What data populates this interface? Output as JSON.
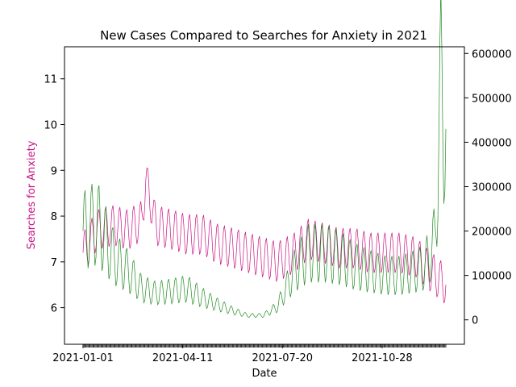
{
  "chart_data": {
    "type": "line",
    "title": "New Cases Compared to Searches for Anxiety in 2021",
    "xlabel": "Date",
    "ylabel_left": "Searches for Anxiety",
    "ylabel_right": "",
    "x_ticks": [
      "2021-01-01",
      "2021-04-11",
      "2021-07-20",
      "2021-10-28"
    ],
    "y_left_ticks": [
      6,
      7,
      8,
      9,
      10,
      11
    ],
    "y_right_ticks": [
      "0",
      "100000",
      "200000",
      "300000",
      "400000",
      "500000",
      "600000"
    ],
    "x_range": [
      "2021-01-01",
      "2021-12-31"
    ],
    "y_left_range": [
      5.2,
      11.7
    ],
    "y_right_range": [
      -55000,
      615000
    ],
    "grid": false,
    "colors": {
      "searches": "#c71585",
      "cases": "#228b22",
      "left_label": "#c71585"
    },
    "series": [
      {
        "axis": "left",
        "x": [
          "2021-01-01",
          "2021-01-15",
          "2021-02-01",
          "2021-02-15",
          "2021-03-01",
          "2021-03-05",
          "2021-03-15",
          "2021-04-01",
          "2021-04-15",
          "2021-05-01",
          "2021-05-15",
          "2021-06-01",
          "2021-06-15",
          "2021-07-01",
          "2021-07-15",
          "2021-08-01",
          "2021-08-15",
          "2021-09-01",
          "2021-09-15",
          "2021-10-01",
          "2021-10-15",
          "2021-11-01",
          "2021-11-15",
          "2021-12-01",
          "2021-12-15",
          "2021-12-31"
        ],
        "values": [
          7.2,
          7.7,
          7.8,
          7.7,
          7.9,
          8.8,
          7.8,
          7.7,
          7.6,
          7.6,
          7.4,
          7.3,
          7.2,
          7.1,
          7.0,
          7.2,
          7.5,
          7.4,
          7.3,
          7.3,
          7.2,
          7.2,
          7.2,
          7.1,
          6.8,
          6.5
        ]
      },
      {
        "axis": "right",
        "x": [
          "2021-01-01",
          "2021-01-15",
          "2021-02-01",
          "2021-02-15",
          "2021-03-01",
          "2021-03-15",
          "2021-04-01",
          "2021-04-15",
          "2021-05-01",
          "2021-05-15",
          "2021-06-01",
          "2021-06-15",
          "2021-07-01",
          "2021-07-15",
          "2021-08-01",
          "2021-08-15",
          "2021-09-01",
          "2021-09-15",
          "2021-10-01",
          "2021-10-15",
          "2021-11-01",
          "2021-11-15",
          "2021-12-01",
          "2021-12-10",
          "2021-12-20",
          "2021-12-26",
          "2021-12-31"
        ],
        "values": [
          200000,
          220000,
          140000,
          110000,
          70000,
          60000,
          65000,
          70000,
          50000,
          35000,
          20000,
          10000,
          10000,
          30000,
          110000,
          150000,
          150000,
          140000,
          120000,
          110000,
          100000,
          100000,
          110000,
          120000,
          180000,
          520000,
          430000
        ]
      }
    ]
  }
}
